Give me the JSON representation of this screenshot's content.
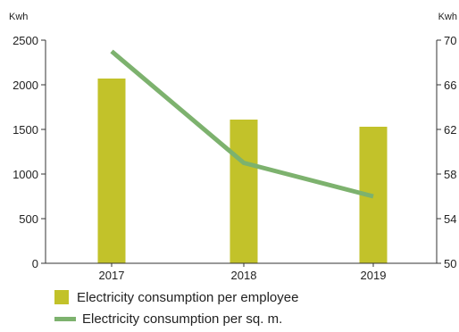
{
  "chart_data": {
    "type": "bar",
    "categories": [
      "2017",
      "2018",
      "2019"
    ],
    "title": "",
    "y_left": {
      "unit_label": "Kwh",
      "range": [
        0,
        2500
      ],
      "ticks": [
        0,
        500,
        1000,
        1500,
        2000,
        2500
      ]
    },
    "y_right": {
      "unit_label": "Kwh",
      "range": [
        50,
        70
      ],
      "ticks": [
        50,
        54,
        58,
        62,
        66,
        70
      ]
    },
    "series": [
      {
        "name": "Electricity consumption per employee",
        "kind": "bar",
        "axis": "left",
        "color": "#c2c22a",
        "values": [
          2070,
          1610,
          1530
        ]
      },
      {
        "name": "Electricity consumption per sq. m.",
        "kind": "line",
        "axis": "right",
        "color": "#7db26e",
        "values": [
          69.0,
          59.0,
          56.0
        ]
      }
    ],
    "grid": false,
    "legend": "bottom-left"
  }
}
